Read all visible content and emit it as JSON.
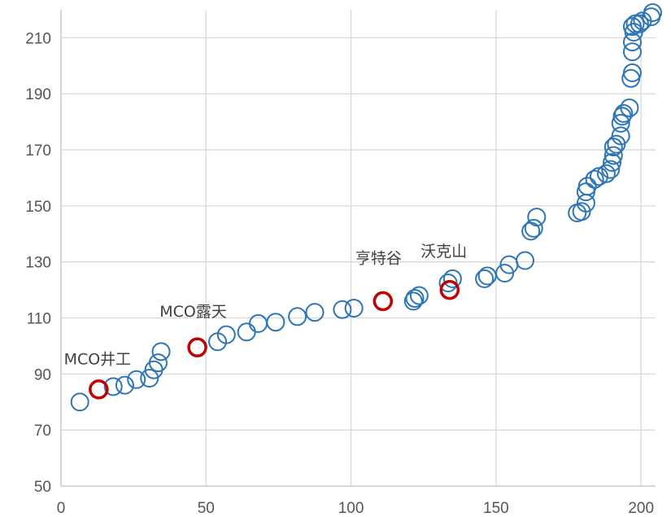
{
  "chart_data": {
    "type": "scatter",
    "title": "",
    "xlabel": "",
    "ylabel": "",
    "xlim": [
      0,
      205
    ],
    "ylim": [
      50,
      220
    ],
    "x_ticks": [
      0,
      50,
      100,
      150,
      200
    ],
    "y_ticks": [
      50,
      70,
      90,
      110,
      130,
      150,
      170,
      190,
      210
    ],
    "grid": "on",
    "legend": "none",
    "colors": {
      "series": "#2e75b6",
      "highlight": "#c00000"
    },
    "series": [
      {
        "points": [
          [
            6.5,
            80
          ],
          [
            18,
            85.5
          ],
          [
            22,
            86
          ],
          [
            26,
            88
          ],
          [
            30.5,
            88.5
          ],
          [
            32,
            91.5
          ],
          [
            33.5,
            94
          ],
          [
            34.5,
            98
          ],
          [
            54,
            101.5
          ],
          [
            57,
            104
          ],
          [
            64,
            105
          ],
          [
            68,
            108
          ],
          [
            74,
            108.5
          ],
          [
            81.5,
            110.5
          ],
          [
            87.5,
            112
          ],
          [
            97,
            113
          ],
          [
            101,
            113.5
          ],
          [
            121.5,
            116
          ],
          [
            122,
            117
          ],
          [
            123.5,
            118
          ],
          [
            133.5,
            122.5
          ],
          [
            135,
            124
          ],
          [
            146,
            124
          ],
          [
            147,
            125
          ],
          [
            153,
            126
          ],
          [
            154.5,
            129
          ],
          [
            160,
            130.5
          ],
          [
            162,
            141
          ],
          [
            163,
            142
          ],
          [
            164,
            146
          ],
          [
            178,
            147.5
          ],
          [
            179.5,
            148
          ],
          [
            181,
            151
          ],
          [
            181,
            155
          ],
          [
            181.5,
            157
          ],
          [
            184,
            159.5
          ],
          [
            185.5,
            160.5
          ],
          [
            188,
            161.5
          ],
          [
            189.5,
            163
          ],
          [
            190,
            165.5
          ],
          [
            190.5,
            168
          ],
          [
            190.5,
            171
          ],
          [
            191.5,
            172
          ],
          [
            193,
            175
          ],
          [
            193,
            179.5
          ],
          [
            193.5,
            182
          ],
          [
            194,
            183
          ],
          [
            196,
            185
          ],
          [
            196.5,
            195.5
          ],
          [
            197,
            197.5
          ],
          [
            197,
            205
          ],
          [
            197,
            208.5
          ],
          [
            197.5,
            212
          ],
          [
            197,
            214
          ],
          [
            198,
            215
          ],
          [
            199.5,
            215
          ],
          [
            200.5,
            216
          ],
          [
            203.5,
            217.5
          ],
          [
            204,
            219
          ]
        ]
      },
      {
        "points": [
          [
            13,
            84.5
          ],
          [
            47,
            99.5
          ],
          [
            111,
            116
          ],
          [
            134,
            120
          ]
        ]
      }
    ],
    "annotations": [
      {
        "text": "MCO井工",
        "x": 1,
        "y": 93.5
      },
      {
        "text": "MCO露天",
        "x": 34,
        "y": 110.5
      },
      {
        "text": "亨特谷",
        "x": 101.5,
        "y": 129.5
      },
      {
        "text": "沃克山",
        "x": 124,
        "y": 132
      }
    ]
  }
}
